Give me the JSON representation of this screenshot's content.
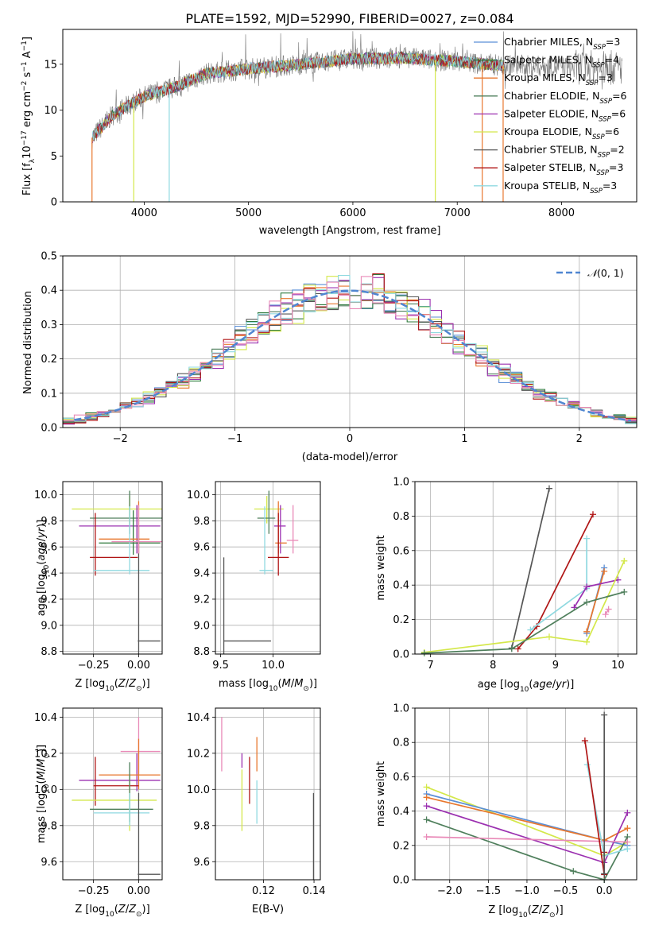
{
  "figure_title": "PLATE=1592, MJD=52990, FIBERID=0027, z=0.084",
  "colors": {
    "Chabrier MILES": "#5b8fd6",
    "Salpeter MILES": "#2f7a3e",
    "Kroupa MILES": "#e8772e",
    "Chabrier ELODIE": "#4f7f5c",
    "Salpeter ELODIE": "#9b30b0",
    "Kroupa ELODIE": "#d4e84a",
    "Chabrier STELIB": "#555555",
    "Salpeter STELIB": "#b01515",
    "Kroupa STELIB": "#8fd9e0",
    "pinkfit": "#e98ab8",
    "normal": "#4f86d1"
  },
  "chart_data": [
    {
      "id": "spectrum",
      "type": "line",
      "xlabel": "wavelength [Angstrom, rest frame]",
      "ylabel": "Flux [fλ10⁻¹⁷ erg cm⁻² s⁻¹ A⁻¹]",
      "xlim": [
        3220,
        8720
      ],
      "ylim": [
        0,
        18.8
      ],
      "xticks": [
        4000,
        5000,
        6000,
        7000,
        8000
      ],
      "yticks": [
        0,
        5,
        10,
        15
      ],
      "grid": false,
      "legend_position": "right",
      "legend": [
        {
          "main": "Chabrier MILES, N",
          "sub": "SSP",
          "tail": "=3"
        },
        {
          "main": "Salpeter MILES, N",
          "sub": "SSP",
          "tail": "=4"
        },
        {
          "main": "Kroupa MILES, N",
          "sub": "SSP",
          "tail": "=3"
        },
        {
          "main": "Chabrier ELODIE, N",
          "sub": "SSP",
          "tail": "=6"
        },
        {
          "main": "Salpeter ELODIE, N",
          "sub": "SSP",
          "tail": "=6"
        },
        {
          "main": "Kroupa ELODIE, N",
          "sub": "SSP",
          "tail": "=6"
        },
        {
          "main": "Chabrier STELIB, N",
          "sub": "SSP",
          "tail": "=2"
        },
        {
          "main": "Salpeter STELIB, N",
          "sub": "SSP",
          "tail": "=3"
        },
        {
          "main": "Kroupa STELIB, N",
          "sub": "SSP",
          "tail": "=3"
        }
      ],
      "model_range": [
        3500,
        7450
      ],
      "data_range": [
        3500,
        8580
      ],
      "continuum": [
        [
          3500,
          7.0
        ],
        [
          3700,
          9.5
        ],
        [
          4000,
          11.5
        ],
        [
          4300,
          12.5
        ],
        [
          4600,
          14.0
        ],
        [
          5000,
          14.5
        ],
        [
          5500,
          15.0
        ],
        [
          6000,
          15.6
        ],
        [
          6500,
          15.7
        ],
        [
          7000,
          15.3
        ],
        [
          7400,
          14.9
        ],
        [
          8000,
          14.7
        ],
        [
          8580,
          14.6
        ]
      ],
      "dropouts": [
        {
          "x": 3500,
          "series": "Kroupa MILES"
        },
        {
          "x": 3900,
          "series": "Kroupa ELODIE"
        },
        {
          "x": 4240,
          "series": "Kroupa STELIB"
        },
        {
          "x": 6790,
          "series": "Kroupa ELODIE"
        },
        {
          "x": 7240,
          "series": "Kroupa MILES"
        },
        {
          "x": 7440,
          "series": "Kroupa MILES"
        }
      ]
    },
    {
      "id": "residual-hist",
      "type": "histogram",
      "xlabel": "(data-model)/error",
      "ylabel": "Normed distribution",
      "xlim": [
        -2.5,
        2.5
      ],
      "ylim": [
        0,
        0.5
      ],
      "xticks": [
        -2,
        -1,
        0,
        1,
        2
      ],
      "xticklabels": [
        "−2",
        "−1",
        "0",
        "1",
        "2"
      ],
      "yticks": [
        0,
        0.1,
        0.2,
        0.3,
        0.4,
        0.5
      ],
      "yticklabels": [
        "0.0",
        "0.1",
        "0.2",
        "0.3",
        "0.4",
        "0.5"
      ],
      "grid": true,
      "legend_position": "top-right",
      "legend_label": "N(0, 1)",
      "bin_width": 0.1
    },
    {
      "id": "age-vs-Z",
      "type": "errorbar",
      "xlabel": "Z [log10(Z/Z⊙)]",
      "ylabel": "age [log10(age/yr)]",
      "xlim": [
        -0.42,
        0.13
      ],
      "ylim": [
        8.78,
        10.1
      ],
      "xticks": [
        -0.25,
        0.0
      ],
      "xticklabels": [
        "−0.25",
        "0.00"
      ],
      "yticks": [
        8.8,
        9.0,
        9.2,
        9.4,
        9.6,
        9.8,
        10.0
      ],
      "yticklabels": [
        "8.8",
        "9.0",
        "9.2",
        "9.4",
        "9.6",
        "9.8",
        "10.0"
      ],
      "points": [
        {
          "s": "Kroupa ELODIE",
          "x": -0.05,
          "xe": [
            -0.37,
            0.17
          ],
          "y": 9.89,
          "ye": [
            9.78,
            9.99
          ]
        },
        {
          "s": "Chabrier ELODIE",
          "x": -0.05,
          "xe": [
            -0.27,
            0.13
          ],
          "y": 9.82,
          "ye": [
            9.7,
            10.03
          ]
        },
        {
          "s": "Salpeter ELODIE",
          "x": -0.01,
          "xe": [
            -0.33,
            0.12
          ],
          "y": 9.76,
          "ye": [
            9.55,
            9.92
          ]
        },
        {
          "s": "Salpeter MILES",
          "x": -0.03,
          "xe": [
            -0.22,
            0.12
          ],
          "y": 9.63,
          "ye": [
            9.54,
            9.88
          ]
        },
        {
          "s": "Kroupa MILES",
          "x": 0.0,
          "xe": [
            -0.22,
            0.06
          ],
          "y": 9.66,
          "ye": [
            9.55,
            9.95
          ]
        },
        {
          "s": "Salpeter STELIB",
          "x": -0.24,
          "xe": [
            -0.27,
            -0.005
          ],
          "y": 9.52,
          "ye": [
            9.38,
            9.86
          ]
        },
        {
          "s": "Kroupa STELIB",
          "x": -0.05,
          "xe": [
            -0.25,
            0.06
          ],
          "y": 9.42,
          "ye": [
            9.39,
            9.91
          ]
        },
        {
          "s": "Chabrier STELIB",
          "x": 0.0,
          "xe": [
            -0.005,
            0.12
          ],
          "y": 8.88,
          "ye": [
            8.78,
            9.76
          ]
        },
        {
          "s": "pinkfit",
          "x": 0.0,
          "xe": [
            -0.15,
            0.13
          ],
          "y": 9.64,
          "ye": [
            9.55,
            9.92
          ]
        }
      ]
    },
    {
      "id": "age-vs-mass",
      "type": "errorbar",
      "xlabel": "mass [log10(M/M⊙)]",
      "ylabel": "",
      "xlim": [
        9.45,
        10.45
      ],
      "ylim": [
        8.78,
        10.1
      ],
      "xticks": [
        9.5,
        10.0
      ],
      "xticklabels": [
        "9.5",
        "10.0"
      ],
      "yticks": [
        8.8,
        9.0,
        9.2,
        9.4,
        9.6,
        9.8,
        10.0
      ],
      "yticklabels": [
        "8.8",
        "9.0",
        "9.2",
        "9.4",
        "9.6",
        "9.8",
        "10.0"
      ],
      "points": [
        {
          "s": "Kroupa ELODIE",
          "x": 9.94,
          "xe": [
            9.82,
            10.1
          ],
          "y": 9.89,
          "ye": [
            9.78,
            9.99
          ]
        },
        {
          "s": "Chabrier ELODIE",
          "x": 9.96,
          "xe": [
            9.85,
            10.02
          ],
          "y": 9.82,
          "ye": [
            9.7,
            10.03
          ]
        },
        {
          "s": "Salpeter ELODIE",
          "x": 10.07,
          "xe": [
            10.01,
            10.12
          ],
          "y": 9.76,
          "ye": [
            9.55,
            9.92
          ]
        },
        {
          "s": "Kroupa MILES",
          "x": 10.05,
          "xe": [
            10.02,
            10.13
          ],
          "y": 9.63,
          "ye": [
            9.55,
            9.95
          ]
        },
        {
          "s": "pinkfit",
          "x": 10.19,
          "xe": [
            10.13,
            10.24
          ],
          "y": 9.65,
          "ye": [
            9.55,
            9.92
          ]
        },
        {
          "s": "Salpeter STELIB",
          "x": 10.05,
          "xe": [
            9.95,
            10.15
          ],
          "y": 9.52,
          "ye": [
            9.38,
            9.86
          ]
        },
        {
          "s": "Kroupa STELIB",
          "x": 9.92,
          "xe": [
            9.87,
            10.0
          ],
          "y": 9.42,
          "ye": [
            9.39,
            9.91
          ]
        },
        {
          "s": "Chabrier STELIB",
          "x": 9.53,
          "xe": [
            9.53,
            9.98
          ],
          "y": 8.88,
          "ye": [
            8.78,
            9.52
          ]
        }
      ]
    },
    {
      "id": "weight-vs-age",
      "type": "line",
      "xlabel": "age [log10(age/yr)]",
      "ylabel": "mass weight",
      "xlim": [
        6.75,
        10.3
      ],
      "ylim": [
        0,
        1.0
      ],
      "xticks": [
        7,
        8,
        9,
        10
      ],
      "xticklabels": [
        "7",
        "8",
        "9",
        "10"
      ],
      "yticks": [
        0,
        0.2,
        0.4,
        0.6,
        0.8,
        1.0
      ],
      "yticklabels": [
        "0.0",
        "0.2",
        "0.4",
        "0.6",
        "0.8",
        "1.0"
      ],
      "grid": true,
      "series": [
        {
          "s": "Chabrier STELIB",
          "x": [
            8.3,
            8.9
          ],
          "y": [
            0.035,
            0.96
          ]
        },
        {
          "s": "Salpeter STELIB",
          "x": [
            8.4,
            8.7,
            9.6
          ],
          "y": [
            0.03,
            0.16,
            0.81
          ]
        },
        {
          "s": "Kroupa STELIB",
          "x": [
            8.6,
            9.5,
            9.5
          ],
          "y": [
            0.14,
            0.38,
            0.67
          ]
        },
        {
          "s": "Chabrier MILES",
          "x": [
            9.5,
            9.78
          ],
          "y": [
            0.12,
            0.5
          ]
        },
        {
          "s": "Kroupa MILES",
          "x": [
            9.5,
            9.78
          ],
          "y": [
            0.13,
            0.48
          ]
        },
        {
          "s": "Salpeter ELODIE",
          "x": [
            9.3,
            9.5,
            10.0
          ],
          "y": [
            0.27,
            0.39,
            0.43
          ]
        },
        {
          "s": "Kroupa ELODIE",
          "x": [
            6.9,
            8.9,
            9.5,
            10.1
          ],
          "y": [
            0.01,
            0.1,
            0.07,
            0.54
          ]
        },
        {
          "s": "Chabrier ELODIE",
          "x": [
            6.9,
            8.3,
            9.5,
            10.1
          ],
          "y": [
            0.005,
            0.03,
            0.3,
            0.36
          ]
        },
        {
          "s": "pinkfit",
          "x": [
            9.8,
            9.85
          ],
          "y": [
            0.23,
            0.26
          ]
        }
      ]
    },
    {
      "id": "mass-vs-Z",
      "type": "errorbar",
      "xlabel": "Z [log10(Z/Z⊙)]",
      "ylabel": "mass [log10(M/M⊙)]",
      "xlim": [
        -0.42,
        0.13
      ],
      "ylim": [
        9.5,
        10.45
      ],
      "xticks": [
        -0.25,
        0.0
      ],
      "xticklabels": [
        "−0.25",
        "0.00"
      ],
      "yticks": [
        9.6,
        9.8,
        10.0,
        10.2,
        10.4
      ],
      "yticklabels": [
        "9.6",
        "9.8",
        "10.0",
        "10.2",
        "10.4"
      ],
      "points": [
        {
          "s": "pinkfit",
          "x": 0.0,
          "xe": [
            -0.1,
            0.12
          ],
          "y": 10.21,
          "ye": [
            10.08,
            10.4
          ]
        },
        {
          "s": "Salpeter ELODIE",
          "x": -0.01,
          "xe": [
            -0.33,
            0.12
          ],
          "y": 10.05,
          "ye": [
            9.99,
            10.2
          ]
        },
        {
          "s": "Kroupa MILES",
          "x": 0.0,
          "xe": [
            -0.22,
            0.12
          ],
          "y": 10.08,
          "ye": [
            10.0,
            10.28
          ]
        },
        {
          "s": "Salpeter STELIB",
          "x": -0.24,
          "xe": [
            -0.25,
            0.0
          ],
          "y": 10.02,
          "ye": [
            9.91,
            10.18
          ]
        },
        {
          "s": "Kroupa ELODIE",
          "x": -0.05,
          "xe": [
            -0.37,
            0.1
          ],
          "y": 9.94,
          "ye": [
            9.77,
            10.08
          ]
        },
        {
          "s": "Chabrier ELODIE",
          "x": -0.05,
          "xe": [
            -0.27,
            0.08
          ],
          "y": 9.89,
          "ye": [
            9.82,
            10.15
          ]
        },
        {
          "s": "Kroupa STELIB",
          "x": -0.05,
          "xe": [
            -0.25,
            0.06
          ],
          "y": 9.87,
          "ye": [
            9.8,
            9.98
          ]
        },
        {
          "s": "Chabrier STELIB",
          "x": 0.0,
          "xe": [
            -0.005,
            0.12
          ],
          "y": 9.53,
          "ye": [
            9.5,
            9.98
          ]
        }
      ]
    },
    {
      "id": "mass-vs-EBV",
      "type": "errorbar",
      "xlabel": "E(B-V)",
      "ylabel": "",
      "xlim": [
        0.101,
        0.1425
      ],
      "ylim": [
        9.5,
        10.45
      ],
      "xticks": [
        0.12,
        0.14
      ],
      "xticklabels": [
        "0.12",
        "0.14"
      ],
      "yticks": [
        9.6,
        9.8,
        10.0,
        10.2,
        10.4
      ],
      "yticklabels": [
        "9.6",
        "9.8",
        "10.0",
        "10.2",
        "10.4"
      ],
      "points": [
        {
          "s": "pinkfit",
          "x": 0.1035,
          "ye": [
            10.1,
            10.4
          ]
        },
        {
          "s": "Salpeter ELODIE",
          "x": 0.1115,
          "ye": [
            10.12,
            10.2
          ]
        },
        {
          "s": "Kroupa ELODIE",
          "x": 0.1115,
          "ye": [
            9.77,
            10.11
          ]
        },
        {
          "s": "Salpeter STELIB",
          "x": 0.1145,
          "ye": [
            9.92,
            10.18
          ]
        },
        {
          "s": "Kroupa MILES",
          "x": 0.1174,
          "ye": [
            10.1,
            10.29
          ]
        },
        {
          "s": "Kroupa STELIB",
          "x": 0.1174,
          "ye": [
            9.81,
            10.05
          ]
        },
        {
          "s": "Chabrier STELIB",
          "x": 0.1398,
          "ye": [
            9.5,
            9.98
          ]
        }
      ]
    },
    {
      "id": "weight-vs-Z",
      "type": "line",
      "xlabel": "Z [log10(Z/Z⊙)]",
      "ylabel": "mass weight",
      "xlim": [
        -2.45,
        0.42
      ],
      "ylim": [
        0,
        1.0
      ],
      "xticks": [
        -2.0,
        -1.5,
        -1.0,
        -0.5,
        0.0
      ],
      "xticklabels": [
        "−2.0",
        "−1.5",
        "−1.0",
        "−0.5",
        "0.0"
      ],
      "yticks": [
        0,
        0.2,
        0.4,
        0.6,
        0.8,
        1.0
      ],
      "yticklabels": [
        "0.0",
        "0.2",
        "0.4",
        "0.6",
        "0.8",
        "1.0"
      ],
      "grid": true,
      "series": [
        {
          "s": "Kroupa ELODIE",
          "x": [
            -2.3,
            0.0,
            0.3
          ],
          "y": [
            0.54,
            0.14,
            0.22
          ]
        },
        {
          "s": "Chabrier MILES",
          "x": [
            -2.3,
            0.0,
            0.3
          ],
          "y": [
            0.5,
            0.23,
            0.2
          ]
        },
        {
          "s": "Kroupa MILES",
          "x": [
            -2.3,
            0.0,
            0.3
          ],
          "y": [
            0.48,
            0.23,
            0.3
          ]
        },
        {
          "s": "Salpeter ELODIE",
          "x": [
            -2.3,
            0.0,
            0.3
          ],
          "y": [
            0.43,
            0.1,
            0.39
          ]
        },
        {
          "s": "Chabrier ELODIE",
          "x": [
            -2.3,
            -0.4,
            0.0,
            0.3
          ],
          "y": [
            0.35,
            0.05,
            0.0,
            0.25
          ]
        },
        {
          "s": "pinkfit",
          "x": [
            -2.3,
            0.3
          ],
          "y": [
            0.25,
            0.22
          ]
        },
        {
          "s": "Kroupa STELIB",
          "x": [
            -0.22,
            0.0,
            0.3
          ],
          "y": [
            0.67,
            0.14,
            0.18
          ]
        },
        {
          "s": "Salpeter STELIB",
          "x": [
            -0.25,
            0.0,
            0.0
          ],
          "y": [
            0.81,
            0.03,
            0.16
          ]
        },
        {
          "s": "Chabrier STELIB",
          "x": [
            0.0,
            0.0
          ],
          "y": [
            0.035,
            0.96
          ]
        }
      ]
    }
  ]
}
